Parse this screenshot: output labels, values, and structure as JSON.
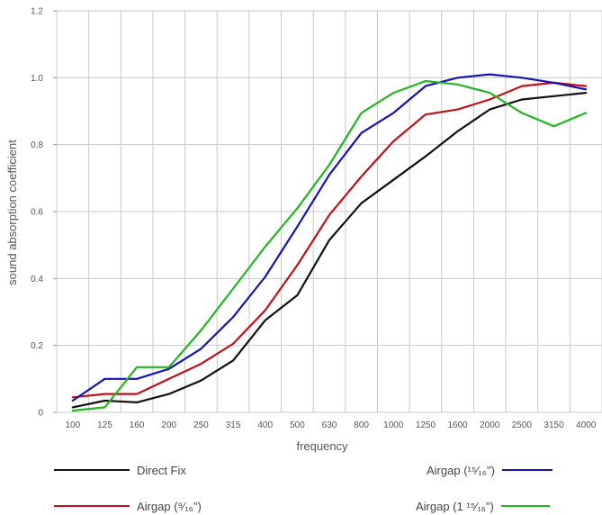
{
  "chart_data": {
    "type": "line",
    "title": "",
    "xlabel": "frequency",
    "ylabel": "sound absorption coefficient",
    "categories": [
      "100",
      "125",
      "160",
      "200",
      "250",
      "315",
      "400",
      "500",
      "630",
      "800",
      "1000",
      "1250",
      "1600",
      "2000",
      "2500",
      "3150",
      "4000"
    ],
    "y_ticks": [
      "0",
      "0.2",
      "0.4",
      "0.6",
      "0.8",
      "1.0",
      "1.2"
    ],
    "ylim": [
      0,
      1.2
    ],
    "grid": true,
    "legend_position": "bottom",
    "series": [
      {
        "name": "Direct Fix",
        "color": "#111111",
        "values": [
          0.015,
          0.035,
          0.03,
          0.055,
          0.095,
          0.155,
          0.275,
          0.35,
          0.515,
          0.625,
          0.695,
          0.765,
          0.84,
          0.905,
          0.935,
          0.945,
          0.955
        ]
      },
      {
        "name": "Airgap (⁹⁄₁₆\")",
        "color": "#c0111a",
        "values": [
          0.045,
          0.055,
          0.055,
          0.1,
          0.145,
          0.205,
          0.305,
          0.44,
          0.59,
          0.705,
          0.81,
          0.89,
          0.905,
          0.935,
          0.975,
          0.985,
          0.975
        ]
      },
      {
        "name": "Airgap (¹⁵⁄₁₆\")",
        "color": "#1414b4",
        "values": [
          0.035,
          0.1,
          0.1,
          0.13,
          0.19,
          0.285,
          0.405,
          0.555,
          0.71,
          0.835,
          0.895,
          0.975,
          1.0,
          1.01,
          1.0,
          0.985,
          0.965
        ]
      },
      {
        "name": "Airgap (1 ¹⁵⁄₁₆\")",
        "color": "#22b622",
        "values": [
          0.005,
          0.015,
          0.135,
          0.135,
          0.245,
          0.37,
          0.495,
          0.61,
          0.74,
          0.895,
          0.955,
          0.99,
          0.98,
          0.955,
          0.895,
          0.855,
          0.895
        ]
      }
    ]
  }
}
